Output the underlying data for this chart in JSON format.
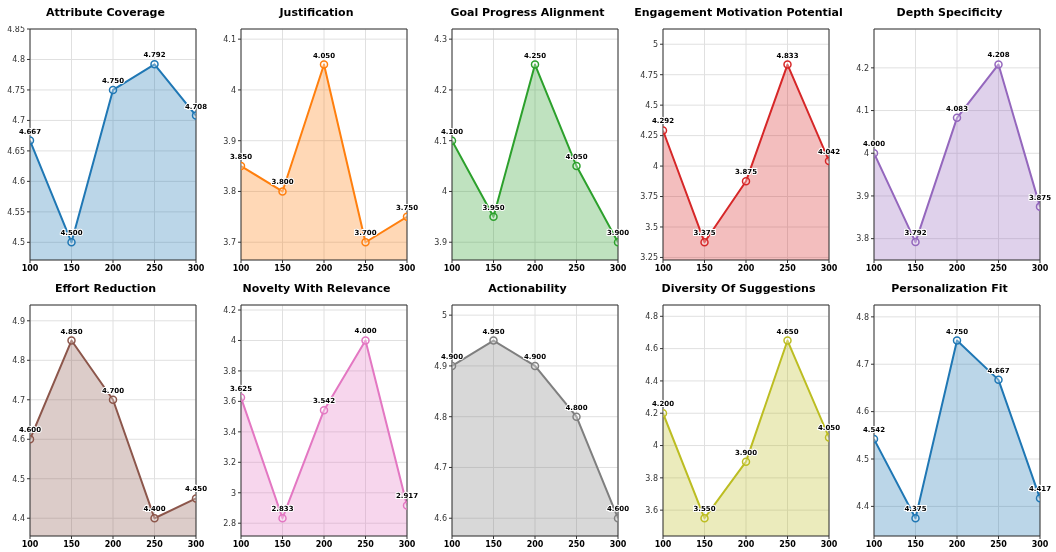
{
  "chart_data": [
    {
      "type": "area",
      "title": "Attribute Coverage",
      "x": [
        100,
        150,
        200,
        250,
        300
      ],
      "xlim": [
        100,
        300
      ],
      "xticks": [
        100,
        150,
        200,
        250,
        300
      ],
      "ylim": [
        4.471,
        4.85
      ],
      "yticks": [
        4.5,
        4.55,
        4.6,
        4.65,
        4.7,
        4.75,
        4.8,
        4.85
      ],
      "grid": true,
      "marker": "circle",
      "color": "#1f77b4",
      "values": [
        4.667,
        4.5,
        4.75,
        4.792,
        4.708
      ],
      "value_labels": [
        "4.667",
        "4.500",
        "4.750",
        "4.792",
        "4.708"
      ]
    },
    {
      "type": "area",
      "title": "Justification",
      "x": [
        100,
        150,
        200,
        250,
        300
      ],
      "xlim": [
        100,
        300
      ],
      "xticks": [
        100,
        150,
        200,
        250,
        300
      ],
      "ylim": [
        3.665,
        4.12
      ],
      "yticks": [
        3.7,
        3.8,
        3.9,
        4.0,
        4.1
      ],
      "grid": true,
      "marker": "circle",
      "color": "#ff7f0e",
      "values": [
        3.85,
        3.8,
        4.05,
        3.7,
        3.75
      ],
      "value_labels": [
        "3.850",
        "3.800",
        "4.050",
        "3.700",
        "3.750"
      ]
    },
    {
      "type": "area",
      "title": "Goal Progress Alignment",
      "x": [
        100,
        150,
        200,
        250,
        300
      ],
      "xlim": [
        100,
        300
      ],
      "xticks": [
        100,
        150,
        200,
        250,
        300
      ],
      "ylim": [
        3.865,
        4.32
      ],
      "yticks": [
        3.9,
        4.0,
        4.1,
        4.2,
        4.3
      ],
      "grid": true,
      "marker": "circle",
      "color": "#2ca02c",
      "values": [
        4.1,
        3.95,
        4.25,
        4.05,
        3.9
      ],
      "value_labels": [
        "4.100",
        "3.950",
        "4.250",
        "4.050",
        "3.900"
      ]
    },
    {
      "type": "area",
      "title": "Engagement Motivation Potential",
      "x": [
        100,
        150,
        200,
        250,
        300
      ],
      "xlim": [
        100,
        300
      ],
      "xticks": [
        100,
        150,
        200,
        250,
        300
      ],
      "ylim": [
        3.229,
        5.125
      ],
      "yticks": [
        3.25,
        3.5,
        3.75,
        4.0,
        4.25,
        4.5,
        4.75,
        5.0
      ],
      "grid": true,
      "marker": "circle",
      "color": "#d62728",
      "values": [
        4.292,
        3.375,
        3.875,
        4.833,
        4.042
      ],
      "value_labels": [
        "4.292",
        "3.375",
        "3.875",
        "4.833",
        "4.042"
      ]
    },
    {
      "type": "area",
      "title": "Depth Specificity",
      "x": [
        100,
        150,
        200,
        250,
        300
      ],
      "xlim": [
        100,
        300
      ],
      "xticks": [
        100,
        150,
        200,
        250,
        300
      ],
      "ylim": [
        3.75,
        4.291
      ],
      "yticks": [
        3.8,
        3.9,
        4.0,
        4.1,
        4.2
      ],
      "grid": true,
      "marker": "circle",
      "color": "#9467bd",
      "values": [
        4.0,
        3.792,
        4.083,
        4.208,
        3.875
      ],
      "value_labels": [
        "4.000",
        "3.792",
        "4.083",
        "4.208",
        "3.875"
      ]
    },
    {
      "type": "area",
      "title": "Effort Reduction",
      "x": [
        100,
        150,
        200,
        250,
        300
      ],
      "xlim": [
        100,
        300
      ],
      "xticks": [
        100,
        150,
        200,
        250,
        300
      ],
      "ylim": [
        4.355,
        4.94
      ],
      "yticks": [
        4.4,
        4.5,
        4.6,
        4.7,
        4.8,
        4.9
      ],
      "grid": true,
      "marker": "circle",
      "color": "#8c564b",
      "values": [
        4.6,
        4.85,
        4.7,
        4.4,
        4.45
      ],
      "value_labels": [
        "4.600",
        "4.850",
        "4.700",
        "4.400",
        "4.450"
      ]
    },
    {
      "type": "area",
      "title": "Novelty With Relevance",
      "x": [
        100,
        150,
        200,
        250,
        300
      ],
      "xlim": [
        100,
        300
      ],
      "xticks": [
        100,
        150,
        200,
        250,
        300
      ],
      "ylim": [
        2.716,
        4.233
      ],
      "yticks": [
        2.8,
        3.0,
        3.2,
        3.4,
        3.6,
        3.8,
        4.0,
        4.2
      ],
      "grid": true,
      "marker": "circle",
      "color": "#e377c2",
      "values": [
        3.625,
        2.833,
        3.542,
        4.0,
        2.917
      ],
      "value_labels": [
        "3.625",
        "2.833",
        "3.542",
        "4.000",
        "2.917"
      ]
    },
    {
      "type": "area",
      "title": "Actionability",
      "x": [
        100,
        150,
        200,
        250,
        300
      ],
      "xlim": [
        100,
        300
      ],
      "xticks": [
        100,
        150,
        200,
        250,
        300
      ],
      "ylim": [
        4.565,
        5.02
      ],
      "yticks": [
        4.6,
        4.7,
        4.8,
        4.9,
        5.0
      ],
      "grid": true,
      "marker": "circle",
      "color": "#7f7f7f",
      "values": [
        4.9,
        4.95,
        4.9,
        4.8,
        4.6
      ],
      "value_labels": [
        "4.900",
        "4.950",
        "4.900",
        "4.800",
        "4.600"
      ]
    },
    {
      "type": "area",
      "title": "Diversity Of Suggestions",
      "x": [
        100,
        150,
        200,
        250,
        300
      ],
      "xlim": [
        100,
        300
      ],
      "xticks": [
        100,
        150,
        200,
        250,
        300
      ],
      "ylim": [
        3.44,
        4.87
      ],
      "yticks": [
        3.6,
        3.8,
        4.0,
        4.2,
        4.4,
        4.6,
        4.8
      ],
      "grid": true,
      "marker": "circle",
      "color": "#bcbd22",
      "values": [
        4.2,
        3.55,
        3.9,
        4.65,
        4.05
      ],
      "value_labels": [
        "4.200",
        "3.550",
        "3.900",
        "4.650",
        "4.050"
      ]
    },
    {
      "type": "area",
      "title": "Personalization Fit",
      "x": [
        100,
        150,
        200,
        250,
        300
      ],
      "xlim": [
        100,
        300
      ],
      "xticks": [
        100,
        150,
        200,
        250,
        300
      ],
      "ylim": [
        4.3375,
        4.825
      ],
      "yticks": [
        4.4,
        4.5,
        4.6,
        4.7,
        4.8
      ],
      "grid": true,
      "marker": "circle",
      "color": "#1f77b4",
      "values": [
        4.542,
        4.375,
        4.75,
        4.667,
        4.417
      ],
      "value_labels": [
        "4.542",
        "4.375",
        "4.750",
        "4.667",
        "4.417"
      ]
    }
  ]
}
